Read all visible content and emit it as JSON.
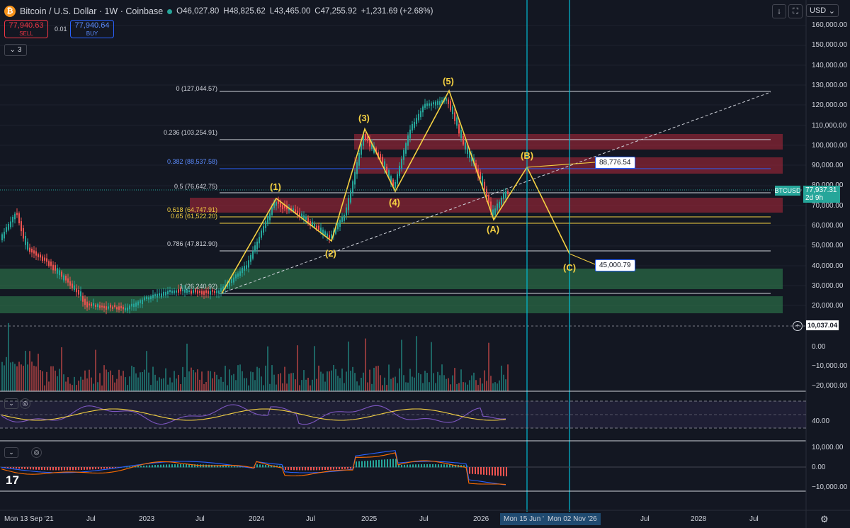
{
  "header": {
    "symbol": "Bitcoin / U.S. Dollar · 1W · Coinbase",
    "logo_icon": "bitcoin-logo-icon",
    "open": "O46,027.80",
    "high": "H48,825.62",
    "low": "L43,465.00",
    "close": "C47,255.92",
    "change": "+1,231.69 (+2.68%)"
  },
  "trade": {
    "sell_price": "77,940.63",
    "sell_label": "SELL",
    "spread": "0.01",
    "buy_price": "77,940.64",
    "buy_label": "BUY"
  },
  "indicators_count": "3",
  "toolbar": {
    "currency": "USD"
  },
  "price_scale": [
    "160,000.00",
    "150,000.00",
    "140,000.00",
    "130,000.00",
    "120,000.00",
    "110,000.00",
    "100,000.00",
    "90,000.00",
    "80,000.00",
    "70,000.00",
    "60,000.00",
    "50,000.00",
    "40,000.00",
    "30,000.00",
    "20,000.00"
  ],
  "volume_scale": [
    "0.00",
    "−10,000.00",
    "−20,000.00"
  ],
  "rsi_scale": [
    "40.00"
  ],
  "macd_scale": [
    "10,000.00",
    "0.00",
    "−10,000.00"
  ],
  "fib_levels": [
    {
      "label": "0 (127,044.57)",
      "color": "#d1d4dc"
    },
    {
      "label": "0.236 (103,254.91)",
      "color": "#d1d4dc"
    },
    {
      "label": "0.382 (88,537.58)",
      "color": "#5b8cff"
    },
    {
      "label": "0.5 (76,642.75)",
      "color": "#d1d4dc"
    },
    {
      "label": "0.618 (64,747.91)",
      "color": "#f5d142"
    },
    {
      "label": "0.65 (61,522.20)",
      "color": "#f5d142"
    },
    {
      "label": "0.786 (47,812.90)",
      "color": "#d1d4dc"
    },
    {
      "label": "1 (26,240.92)",
      "color": "#d1d4dc"
    }
  ],
  "waves": [
    "(1)",
    "(2)",
    "(3)",
    "(4)",
    "(5)",
    "(A)",
    "(B)",
    "(C)"
  ],
  "callouts": {
    "b_target": "88,776.54",
    "c_target": "45,000.79"
  },
  "last_price": {
    "symbol": "BTCUSD",
    "price": "77,937.31",
    "countdown": "2d 9h"
  },
  "dashed_level": "10,037.04",
  "time_axis": [
    "Mon 13 Sep '21",
    "Jul",
    "2023",
    "Jul",
    "2024",
    "Jul",
    "2025",
    "Jul",
    "2026",
    "Jul",
    "2028",
    "Jul"
  ],
  "date_tags": [
    "Mon 15 Jun '",
    "Mon 02 Nov '26"
  ],
  "colors": {
    "up": "#26a69a",
    "down": "#ef5350",
    "wave": "#f5d142",
    "resistance": "#b2283a",
    "support": "#2e7d4f",
    "cursor": "#00bcd4"
  }
}
